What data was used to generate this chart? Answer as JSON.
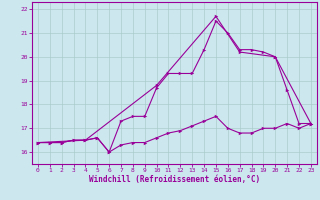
{
  "title": "",
  "xlabel": "Windchill (Refroidissement éolien,°C)",
  "ylabel": "",
  "bg_color": "#cce8ee",
  "grid_color": "#aacccc",
  "line_color": "#990099",
  "xlim": [
    -0.5,
    23.5
  ],
  "ylim": [
    15.5,
    22.3
  ],
  "xticks": [
    0,
    1,
    2,
    3,
    4,
    5,
    6,
    7,
    8,
    9,
    10,
    11,
    12,
    13,
    14,
    15,
    16,
    17,
    18,
    19,
    20,
    21,
    22,
    23
  ],
  "yticks": [
    16,
    17,
    18,
    19,
    20,
    21,
    22
  ],
  "series1_x": [
    0,
    1,
    2,
    3,
    4,
    5,
    6,
    7,
    8,
    9,
    10,
    11,
    12,
    13,
    14,
    15,
    16,
    17,
    18,
    19,
    20,
    21,
    22,
    23
  ],
  "series1_y": [
    16.4,
    16.4,
    16.4,
    16.5,
    16.5,
    16.6,
    16.0,
    16.3,
    16.4,
    16.4,
    16.6,
    16.8,
    16.9,
    17.1,
    17.3,
    17.5,
    17.0,
    16.8,
    16.8,
    17.0,
    17.0,
    17.2,
    17.0,
    17.2
  ],
  "series2_x": [
    0,
    1,
    2,
    3,
    4,
    5,
    6,
    7,
    8,
    9,
    10,
    11,
    12,
    13,
    14,
    15,
    16,
    17,
    18,
    19,
    20,
    21,
    22,
    23
  ],
  "series2_y": [
    16.4,
    16.4,
    16.4,
    16.5,
    16.5,
    16.6,
    16.0,
    17.3,
    17.5,
    17.5,
    18.7,
    19.3,
    19.3,
    19.3,
    20.3,
    21.5,
    21.0,
    20.3,
    20.3,
    20.2,
    20.0,
    18.6,
    17.2,
    17.2
  ],
  "series3_x": [
    0,
    4,
    10,
    15,
    17,
    20,
    23
  ],
  "series3_y": [
    16.4,
    16.5,
    18.8,
    21.7,
    20.2,
    20.0,
    17.2
  ],
  "tick_fontsize": 4.5,
  "xlabel_fontsize": 5.5,
  "marker_size": 2.5,
  "line_width": 0.8
}
